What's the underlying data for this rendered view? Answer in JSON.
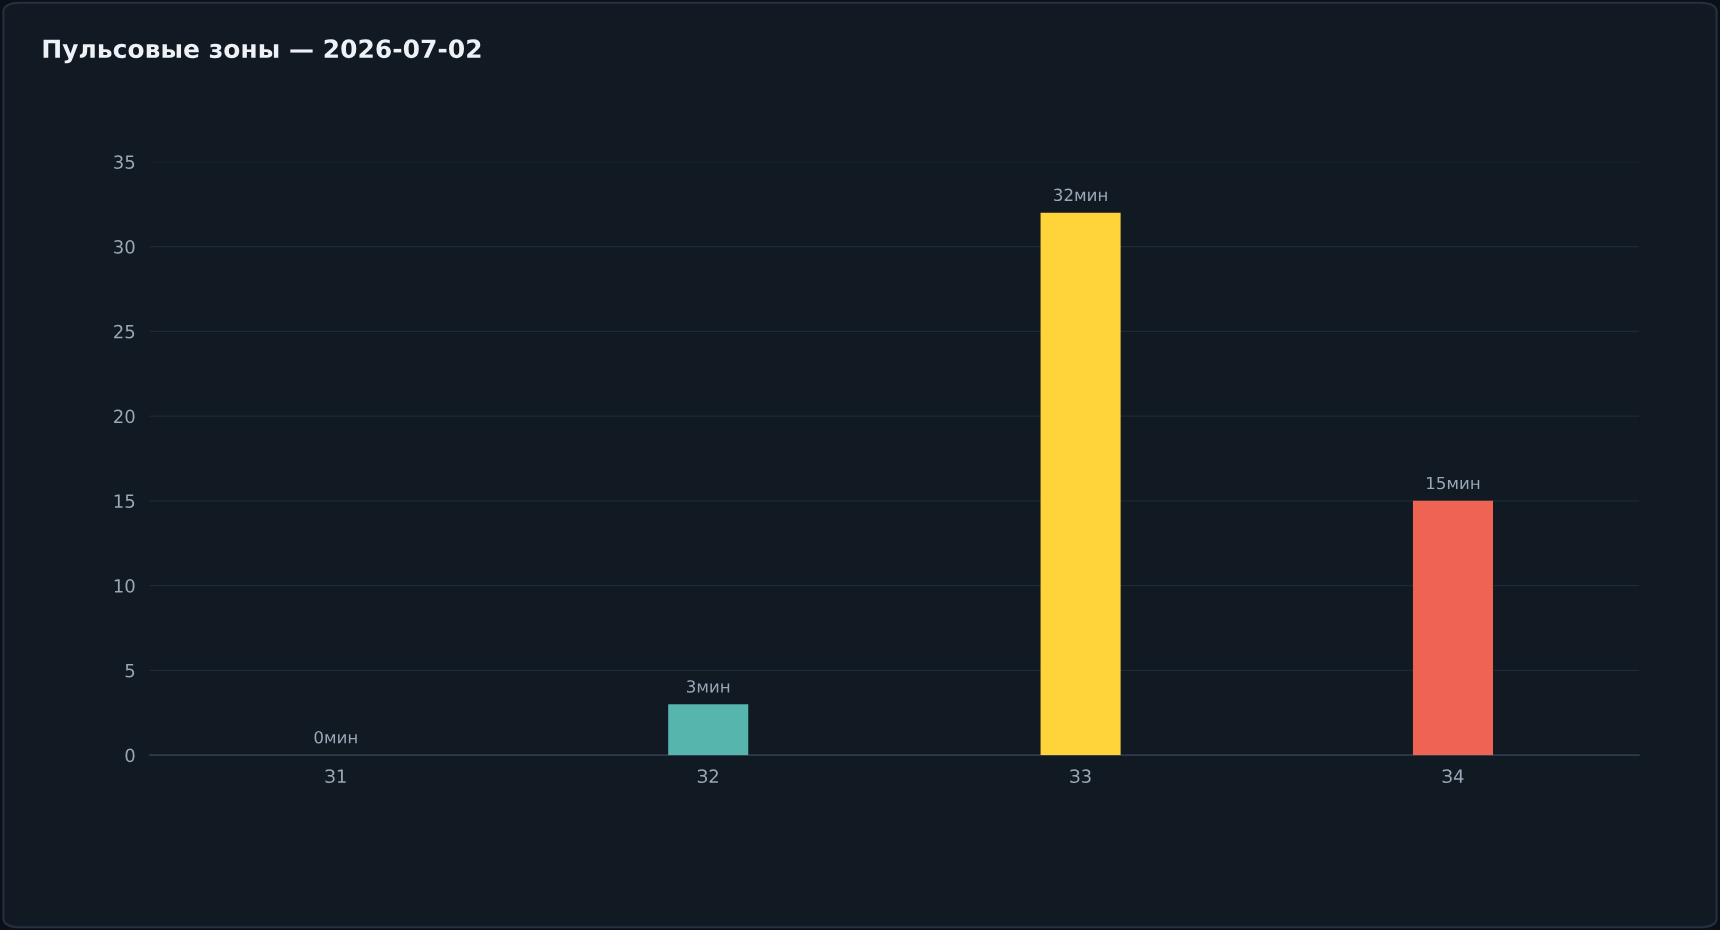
{
  "chart_data": {
    "type": "bar",
    "title": "Пульсовые зоны — 2026-07-02",
    "categories": [
      "З1",
      "З2",
      "З3",
      "З4"
    ],
    "values": [
      0,
      3,
      32,
      15
    ],
    "colors": [
      "#60a5fa",
      "#56b6ae",
      "#ffd43b",
      "#ee6352"
    ],
    "value_labels": [
      "0мин",
      "3мин",
      "32мин",
      "15мин"
    ],
    "ylim": [
      0,
      35
    ],
    "yticks": [
      0,
      5,
      10,
      15,
      20,
      25,
      30,
      35
    ],
    "grid": "y",
    "legend": false
  }
}
